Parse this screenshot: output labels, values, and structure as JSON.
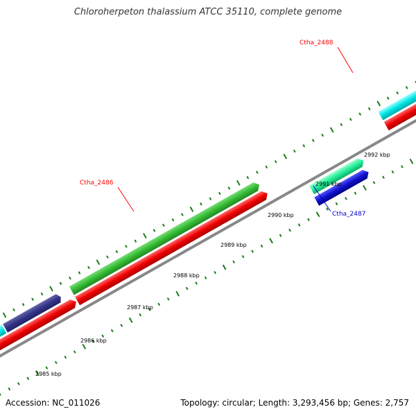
{
  "title": "Chloroherpeton thalassium ATCC 35110, complete genome",
  "footer": {
    "accession": "Accession: NC_011026",
    "summary": "Topology: circular; Length: 3,293,456 bp; Genes: 2,757"
  },
  "scale_labels": [
    "2985 kbp",
    "2986 kbp",
    "2987 kbp",
    "2988 kbp",
    "2989 kbp",
    "2990 kbp",
    "2991 kbp",
    "2992 kbp"
  ],
  "gene_labels": [
    {
      "name": "Ctha_2486",
      "color": "#ff0000"
    },
    {
      "name": "Ctha_2487",
      "color": "#0000cc"
    },
    {
      "name": "Ctha_2488",
      "color": "#ff0000"
    }
  ],
  "colors": {
    "backbone": "#888888",
    "tick": "#1a7a1a",
    "cds": "#ee1111",
    "gene_green": "#33bb33",
    "gene_cyan": "#00e5e5",
    "gene_blue": "#1111cc",
    "gene_teal": "#22ee99",
    "gene_navy": "#333388"
  }
}
